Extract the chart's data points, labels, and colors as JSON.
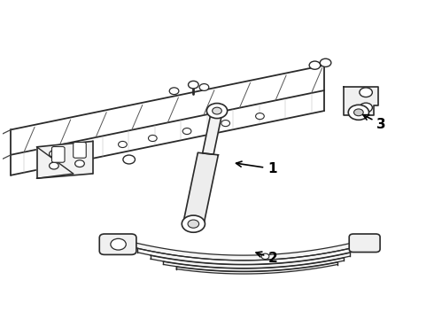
{
  "background_color": "#ffffff",
  "line_color": "#2a2a2a",
  "line_width": 1.2,
  "label_color": "#000000"
}
